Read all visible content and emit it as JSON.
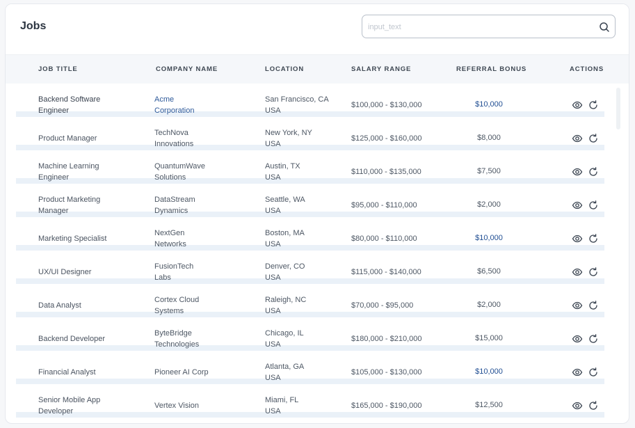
{
  "header": {
    "title": "Jobs"
  },
  "search": {
    "placeholder": "input_text",
    "icon": "search-icon"
  },
  "columns": {
    "job_title": "JOB TITLE",
    "company_name": "COMPANY NAME",
    "location": "LOCATION",
    "salary_range": "SALARY RANGE",
    "referral_bonus": "REFERRAL BONUS",
    "actions": "ACTIONS"
  },
  "colors": {
    "link": "#2e5a9a",
    "bonus_highlight": "#1f4d92",
    "separator": "#eaf1f8"
  },
  "rows": [
    {
      "title1": "Backend Software",
      "title2": "Engineer",
      "company1": "Acme",
      "company2": "Corporation",
      "loc1": "San Francisco, CA",
      "loc2": "USA",
      "salary": "$100,000 - $130,000",
      "bonus": "$10,000"
    },
    {
      "title1": "Product Manager",
      "title2": "",
      "company1": "TechNova",
      "company2": "Innovations",
      "loc1": "New York, NY",
      "loc2": "USA",
      "salary": "$125,000 - $160,000",
      "bonus": "$8,000"
    },
    {
      "title1": "Machine Learning",
      "title2": "Engineer",
      "company1": "QuantumWave",
      "company2": "Solutions",
      "loc1": "Austin, TX",
      "loc2": "USA",
      "salary": "$110,000 - $135,000",
      "bonus": "$7,500"
    },
    {
      "title1": "Product Marketing",
      "title2": "Manager",
      "company1": "DataStream",
      "company2": "Dynamics",
      "loc1": "Seattle, WA",
      "loc2": "USA",
      "salary": "$95,000 - $110,000",
      "bonus": "$2,000"
    },
    {
      "title1": "Marketing Specialist",
      "title2": "",
      "company1": "NextGen",
      "company2": "Networks",
      "loc1": "Boston, MA",
      "loc2": "USA",
      "salary": "$80,000 - $110,000",
      "bonus": "$10,000"
    },
    {
      "title1": "UX/UI Designer",
      "title2": "",
      "company1": "FusionTech",
      "company2": "Labs",
      "loc1": "Denver, CO",
      "loc2": "USA",
      "salary": "$115,000 - $140,000",
      "bonus": "$6,500"
    },
    {
      "title1": "Data Analyst",
      "title2": "",
      "company1": "Cortex Cloud",
      "company2": "Systems",
      "loc1": "Raleigh, NC",
      "loc2": "USA",
      "salary": "$70,000 - $95,000",
      "bonus": "$2,000"
    },
    {
      "title1": "Backend Developer",
      "title2": "",
      "company1": "ByteBridge",
      "company2": "Technologies",
      "loc1": "Chicago, IL",
      "loc2": "USA",
      "salary": "$180,000 - $210,000",
      "bonus": "$15,000"
    },
    {
      "title1": "Financial Analyst",
      "title2": "",
      "company1": "Pioneer AI Corp",
      "company2": "",
      "loc1": "Atlanta, GA",
      "loc2": "USA",
      "salary": "$105,000 - $130,000",
      "bonus": "$10,000"
    },
    {
      "title1": "Senior Mobile App",
      "title2": "Developer",
      "company1": "Vertex Vision",
      "company2": "",
      "loc1": "Miami, FL",
      "loc2": "USA",
      "salary": "$165,000 - $190,000",
      "bonus": "$12,500"
    }
  ],
  "row_actions": {
    "view_icon": "eye-icon",
    "refresh_icon": "refresh-icon"
  }
}
